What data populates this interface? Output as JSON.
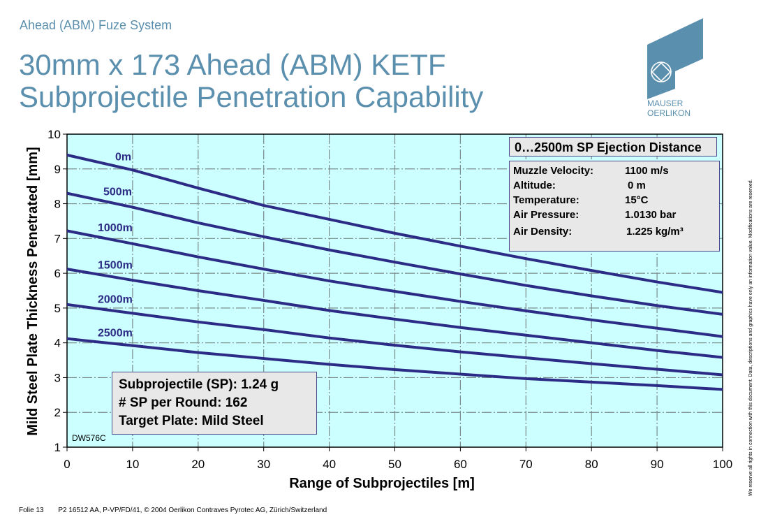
{
  "header": {
    "kicker": "Ahead (ABM) Fuze System",
    "title_line1": "30mm x 173 Ahead (ABM) KETF",
    "title_line2": "Subprojectile Penetration Capability"
  },
  "logo": {
    "line1": "MAUSER",
    "line2": "OERLIKON",
    "icon": "mauser-oerlikon-logo-icon",
    "color": "#5b8fae"
  },
  "info_box_title": "0…2500m SP Ejection Distance",
  "conditions": [
    {
      "label": "Muzzle Velocity:",
      "value": "1100 m/s"
    },
    {
      "label": "Altitude:",
      "value": " 0 m"
    },
    {
      "label": "Temperature:",
      "value": "15°C"
    },
    {
      "label": "Air Pressure:",
      "value": "1.0130 bar"
    },
    {
      "label": "Air Density:",
      "value": " 1.225 kg/m³"
    }
  ],
  "sp_box": {
    "line1": "Subprojectile (SP): 1.24 g",
    "line2": "# SP per Round: 162",
    "line3": "Target Plate: Mild Steel"
  },
  "drawing_code": "DW576C",
  "footer": {
    "slide": "Folie 13",
    "ref": "P2 16512 AA, P-VP/FD/41, © 2004 Oerlikon Contraves Pyrotec AG, Zürich/Switzerland"
  },
  "side_note": "We reserve all rights in connection with this document. Data, descriptions and graphics have only an information value. Modifications are reserved.",
  "colors": {
    "plot_bg": "#ccffff",
    "line": "#2c2c86",
    "title": "#5b8fae",
    "grid": "#7a8a8a"
  },
  "chart_data": {
    "type": "line",
    "title": "30mm x 173 Ahead (ABM) KETF Subprojectile Penetration Capability",
    "xlabel": "Range of Subprojectiles [m]",
    "ylabel": "Mild Steel Plate Thickness Penetrated [mm]",
    "xlim": [
      0,
      100
    ],
    "ylim": [
      1,
      10
    ],
    "xticks": [
      0,
      10,
      20,
      30,
      40,
      50,
      60,
      70,
      80,
      90,
      100
    ],
    "yticks": [
      1,
      2,
      3,
      4,
      5,
      6,
      7,
      8,
      9,
      10
    ],
    "grid": true,
    "legend": "inline labels near left of each curve",
    "x": [
      0,
      10,
      20,
      30,
      40,
      50,
      60,
      70,
      80,
      90,
      100
    ],
    "series": [
      {
        "name": "0m",
        "values": [
          9.4,
          8.97,
          8.45,
          7.95,
          7.55,
          7.15,
          6.78,
          6.42,
          6.08,
          5.75,
          5.45
        ]
      },
      {
        "name": "500m",
        "values": [
          8.3,
          7.9,
          7.45,
          7.05,
          6.67,
          6.32,
          5.98,
          5.65,
          5.35,
          5.07,
          4.82
        ]
      },
      {
        "name": "1000m",
        "values": [
          7.22,
          6.85,
          6.47,
          6.12,
          5.78,
          5.48,
          5.19,
          4.92,
          4.66,
          4.42,
          4.18
        ]
      },
      {
        "name": "1500m",
        "values": [
          6.12,
          5.8,
          5.5,
          5.22,
          4.93,
          4.68,
          4.44,
          4.22,
          4.0,
          3.78,
          3.58
        ]
      },
      {
        "name": "2000m",
        "values": [
          5.1,
          4.85,
          4.6,
          4.38,
          4.14,
          3.93,
          3.74,
          3.57,
          3.4,
          3.24,
          3.08
        ]
      },
      {
        "name": "2500m",
        "values": [
          4.12,
          3.92,
          3.72,
          3.55,
          3.38,
          3.23,
          3.1,
          2.97,
          2.87,
          2.77,
          2.66
        ]
      }
    ]
  }
}
